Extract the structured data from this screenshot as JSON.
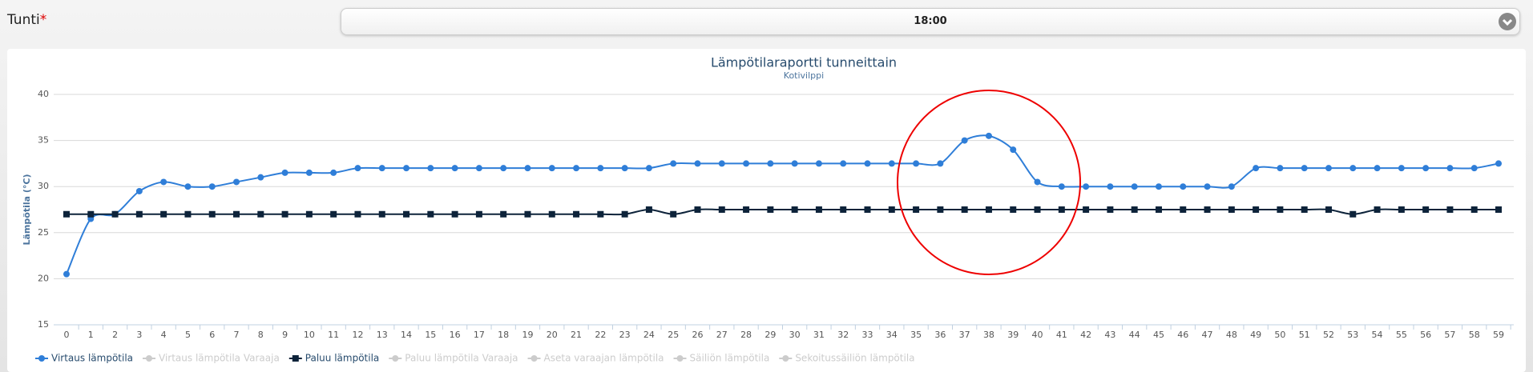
{
  "form": {
    "label": "Tunti",
    "required_mark": "*",
    "value": "18:00"
  },
  "chart_data": {
    "type": "line",
    "title": "Lämpötilaraportti tunneittain",
    "subtitle": "Kotivilppi",
    "y_label": "Lämpötila (°C)",
    "categories": [
      0,
      1,
      2,
      3,
      4,
      5,
      6,
      7,
      8,
      9,
      10,
      11,
      12,
      13,
      14,
      15,
      16,
      17,
      18,
      19,
      20,
      21,
      22,
      23,
      24,
      25,
      26,
      27,
      28,
      29,
      30,
      31,
      32,
      33,
      34,
      35,
      36,
      37,
      38,
      39,
      40,
      41,
      42,
      43,
      44,
      45,
      46,
      47,
      48,
      49,
      50,
      51,
      52,
      53,
      54,
      55,
      56,
      57,
      58,
      59
    ],
    "ylim": [
      15,
      40
    ],
    "yticks": [
      15,
      20,
      25,
      30,
      35,
      40
    ],
    "grid": true,
    "series": [
      {
        "name": "Virtaus lämpötila",
        "color": "#2f7ed8",
        "marker": "circle",
        "values": [
          20.5,
          26.5,
          27,
          29.5,
          30.5,
          30,
          30,
          30.5,
          31,
          31.5,
          31.5,
          31.5,
          32,
          32,
          32,
          32,
          32,
          32,
          32,
          32,
          32,
          32,
          32,
          32,
          32,
          32.5,
          32.5,
          32.5,
          32.5,
          32.5,
          32.5,
          32.5,
          32.5,
          32.5,
          32.5,
          32.5,
          32.5,
          35,
          35.5,
          34,
          30.5,
          30,
          30,
          30,
          30,
          30,
          30,
          30,
          30,
          32,
          32,
          32,
          32,
          32,
          32,
          32,
          32,
          32,
          32,
          32.5
        ]
      },
      {
        "name": "Paluu lämpötila",
        "color": "#0d233a",
        "marker": "square",
        "values": [
          27,
          27,
          27,
          27,
          27,
          27,
          27,
          27,
          27,
          27,
          27,
          27,
          27,
          27,
          27,
          27,
          27,
          27,
          27,
          27,
          27,
          27,
          27,
          27,
          27.5,
          27,
          27.5,
          27.5,
          27.5,
          27.5,
          27.5,
          27.5,
          27.5,
          27.5,
          27.5,
          27.5,
          27.5,
          27.5,
          27.5,
          27.5,
          27.5,
          27.5,
          27.5,
          27.5,
          27.5,
          27.5,
          27.5,
          27.5,
          27.5,
          27.5,
          27.5,
          27.5,
          27.5,
          27,
          27.5,
          27.5,
          27.5,
          27.5,
          27.5,
          27.5
        ]
      }
    ],
    "legend": [
      "Virtaus lämpötila",
      "Virtaus lämpötila Varaaja",
      "Paluu lämpötila",
      "Paluu lämpötila Varaaja",
      "Aseta varaajan lämpötila",
      "Säiliön lämpötila",
      "Sekoitussäiliön lämpötila"
    ]
  }
}
